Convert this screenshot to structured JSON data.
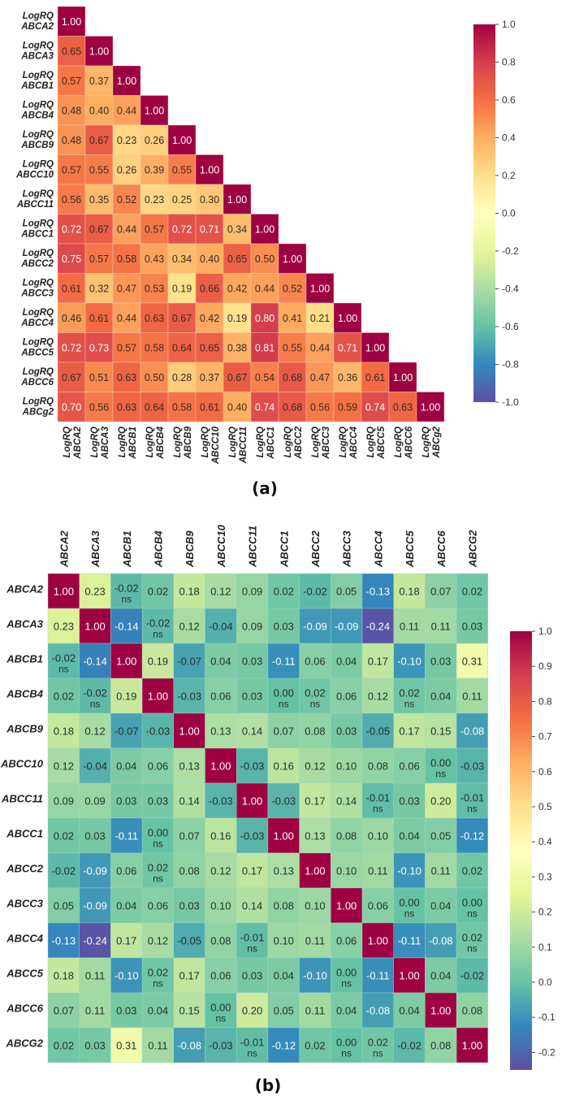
{
  "chart_data": [
    {
      "type": "heatmap",
      "panel_label": "(a)",
      "row_prefix": "LogRQ",
      "labels": [
        "ABCA2",
        "ABCA3",
        "ABCB1",
        "ABCB4",
        "ABCB9",
        "ABCC10",
        "ABCC11",
        "ABCC1",
        "ABCC2",
        "ABCC3",
        "ABCC4",
        "ABCC5",
        "ABCC6",
        "ABCg2"
      ],
      "matrix_lower": [
        [
          1.0
        ],
        [
          0.65,
          1.0
        ],
        [
          0.57,
          0.37,
          1.0
        ],
        [
          0.48,
          0.4,
          0.44,
          1.0
        ],
        [
          0.48,
          0.67,
          0.23,
          0.26,
          1.0
        ],
        [
          0.57,
          0.55,
          0.26,
          0.39,
          0.55,
          1.0
        ],
        [
          0.56,
          0.35,
          0.52,
          0.23,
          0.25,
          0.3,
          1.0
        ],
        [
          0.72,
          0.67,
          0.44,
          0.57,
          0.72,
          0.71,
          0.34,
          1.0
        ],
        [
          0.75,
          0.57,
          0.58,
          0.43,
          0.34,
          0.4,
          0.65,
          0.5,
          1.0
        ],
        [
          0.61,
          0.32,
          0.47,
          0.53,
          0.19,
          0.66,
          0.42,
          0.44,
          0.52,
          1.0
        ],
        [
          0.46,
          0.61,
          0.44,
          0.63,
          0.67,
          0.42,
          0.19,
          0.8,
          0.41,
          0.21,
          1.0
        ],
        [
          0.72,
          0.73,
          0.57,
          0.58,
          0.64,
          0.65,
          0.38,
          0.81,
          0.55,
          0.44,
          0.71,
          1.0
        ],
        [
          0.67,
          0.51,
          0.63,
          0.5,
          0.28,
          0.37,
          0.67,
          0.54,
          0.68,
          0.47,
          0.36,
          0.61,
          1.0
        ],
        [
          0.7,
          0.56,
          0.63,
          0.64,
          0.58,
          0.61,
          0.4,
          0.74,
          0.68,
          0.56,
          0.59,
          0.74,
          0.63,
          1.0
        ]
      ],
      "colormap": "Spectral_r",
      "vmin": -1.0,
      "vmax": 1.0,
      "colorbar_ticks": [
        "1.0",
        "0.8",
        "0.6",
        "0.4",
        "0.2",
        "0.0",
        "-0.2",
        "-0.4",
        "-0.6",
        "-0.8",
        "-1.0"
      ]
    },
    {
      "type": "heatmap",
      "panel_label": "(b)",
      "labels": [
        "ABCA2",
        "ABCA3",
        "ABCB1",
        "ABCB4",
        "ABCB9",
        "ABCC10",
        "ABCC11",
        "ABCC1",
        "ABCC2",
        "ABCC3",
        "ABCC4",
        "ABCC5",
        "ABCC6",
        "ABCG2"
      ],
      "matrix": [
        [
          1.0,
          0.23,
          -0.02,
          0.02,
          0.18,
          0.12,
          0.09,
          0.02,
          -0.02,
          0.05,
          -0.13,
          0.18,
          0.07,
          0.02
        ],
        [
          0.23,
          1.0,
          -0.14,
          -0.02,
          0.12,
          -0.04,
          0.09,
          0.03,
          -0.09,
          -0.09,
          -0.24,
          0.11,
          0.11,
          0.03
        ],
        [
          -0.02,
          -0.14,
          1.0,
          0.19,
          -0.07,
          0.04,
          0.03,
          -0.11,
          0.06,
          0.04,
          0.17,
          -0.1,
          0.03,
          0.31
        ],
        [
          0.02,
          -0.02,
          0.19,
          1.0,
          -0.03,
          0.06,
          0.03,
          0.0,
          0.02,
          0.06,
          0.12,
          0.02,
          0.04,
          0.11
        ],
        [
          0.18,
          0.12,
          -0.07,
          -0.03,
          1.0,
          0.13,
          0.14,
          0.07,
          0.08,
          0.03,
          -0.05,
          0.17,
          0.15,
          -0.08
        ],
        [
          0.12,
          -0.04,
          0.04,
          0.06,
          0.13,
          1.0,
          -0.03,
          0.16,
          0.12,
          0.1,
          0.08,
          0.06,
          0.0,
          -0.03
        ],
        [
          0.09,
          0.09,
          0.03,
          0.03,
          0.14,
          -0.03,
          1.0,
          -0.03,
          0.17,
          0.14,
          -0.01,
          0.03,
          0.2,
          -0.01
        ],
        [
          0.02,
          0.03,
          -0.11,
          0.0,
          0.07,
          0.16,
          -0.03,
          1.0,
          0.13,
          0.08,
          0.1,
          0.04,
          0.05,
          -0.12
        ],
        [
          -0.02,
          -0.09,
          0.06,
          0.02,
          0.08,
          0.12,
          0.17,
          0.13,
          1.0,
          0.1,
          0.11,
          -0.1,
          0.11,
          0.02
        ],
        [
          0.05,
          -0.09,
          0.04,
          0.06,
          0.03,
          0.1,
          0.14,
          0.08,
          0.1,
          1.0,
          0.06,
          0.0,
          0.04,
          0.0
        ],
        [
          -0.13,
          -0.24,
          0.17,
          0.12,
          -0.05,
          0.08,
          -0.01,
          0.1,
          0.11,
          0.06,
          1.0,
          -0.11,
          -0.08,
          0.02
        ],
        [
          0.18,
          0.11,
          -0.1,
          0.02,
          0.17,
          0.06,
          0.03,
          0.04,
          -0.1,
          0.0,
          -0.11,
          1.0,
          0.04,
          -0.02
        ],
        [
          0.07,
          0.11,
          0.03,
          0.04,
          0.15,
          0.0,
          0.2,
          0.05,
          0.11,
          0.04,
          -0.08,
          0.04,
          1.0,
          0.08
        ],
        [
          0.02,
          0.03,
          0.31,
          0.11,
          -0.08,
          -0.03,
          -0.01,
          -0.12,
          0.02,
          0.0,
          0.02,
          -0.02,
          0.08,
          1.0
        ]
      ],
      "ns_label": "ns",
      "ns_cells": [
        [
          0,
          2
        ],
        [
          1,
          3
        ],
        [
          2,
          0
        ],
        [
          3,
          1
        ],
        [
          3,
          7
        ],
        [
          3,
          8
        ],
        [
          3,
          11
        ],
        [
          5,
          12
        ],
        [
          6,
          10
        ],
        [
          6,
          13
        ],
        [
          7,
          3
        ],
        [
          8,
          3
        ],
        [
          9,
          11
        ],
        [
          9,
          13
        ],
        [
          10,
          6
        ],
        [
          10,
          13
        ],
        [
          11,
          3
        ],
        [
          11,
          9
        ],
        [
          12,
          5
        ],
        [
          13,
          6
        ],
        [
          13,
          9
        ],
        [
          13,
          10
        ]
      ],
      "colormap": "Spectral_r",
      "vmin": -0.25,
      "vmax": 1.0,
      "colorbar_ticks": [
        "1.0",
        "0.9",
        "0.8",
        "0.7",
        "0.6",
        "0.5",
        "0.4",
        "0.3",
        "0.2",
        "0.1",
        "0.0",
        "-0.1",
        "-0.2"
      ]
    }
  ]
}
